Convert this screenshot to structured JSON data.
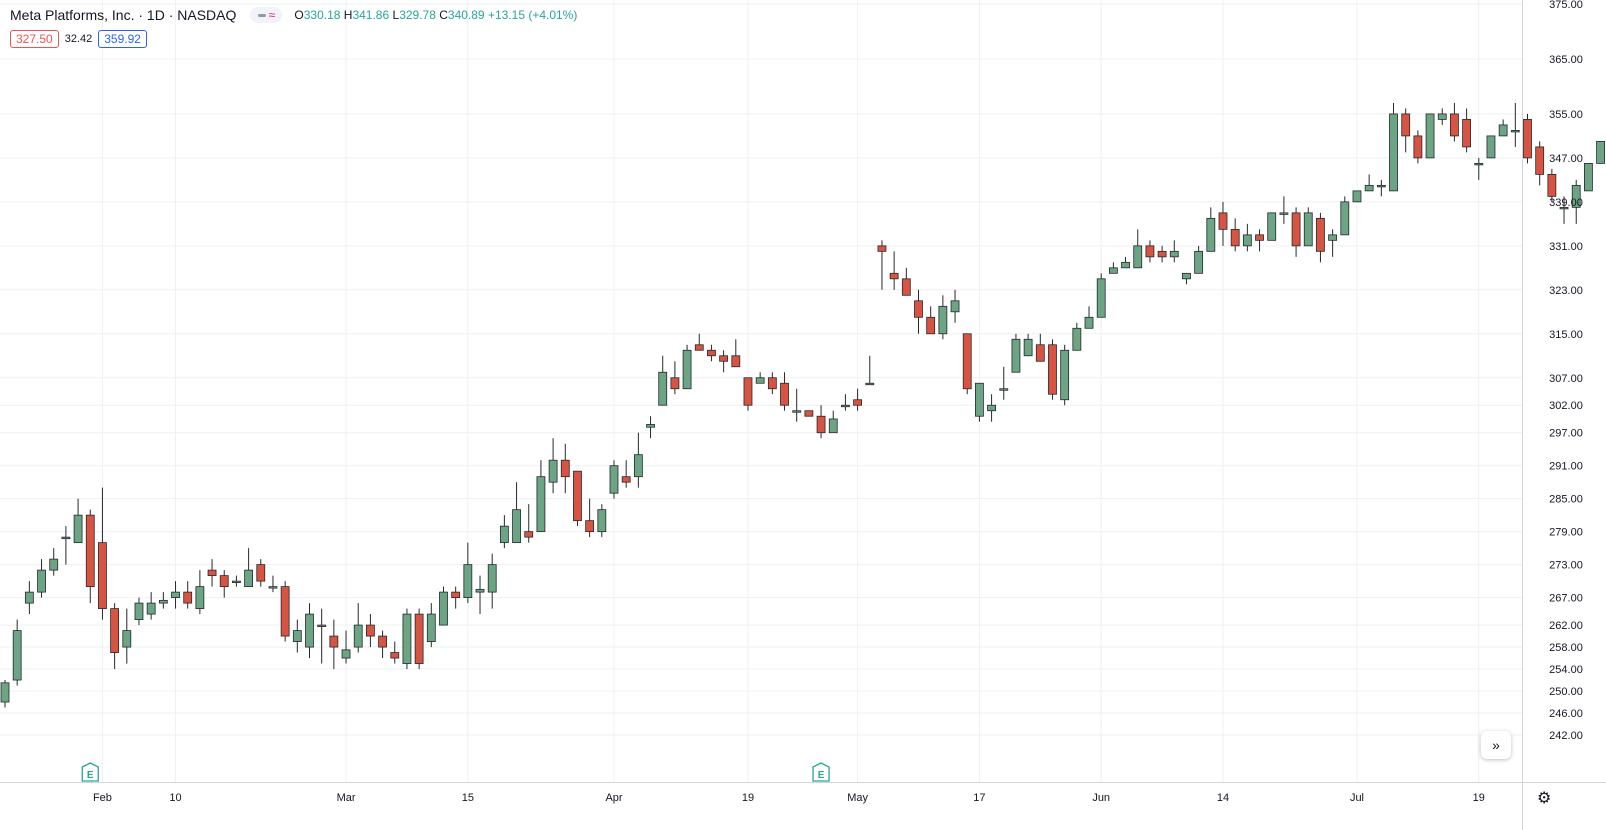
{
  "header": {
    "title": "Meta Platforms, Inc. · 1D · NASDAQ",
    "o_label": "O",
    "o": "330.18",
    "h_label": "H",
    "h": "341.86",
    "l_label": "L",
    "l": "329.78",
    "c_label": "C",
    "c": "340.89",
    "change": "+13.15 (+4.01%)",
    "pill_low": "327.50",
    "pill_mid": "32.42",
    "pill_high": "359.92"
  },
  "colors": {
    "up": "#6ba583",
    "down": "#d75442",
    "grid": "#eef0f3",
    "axis_text": "#131722",
    "earnings": "#26a69a"
  },
  "icons": {
    "scroll_right": "double-chevron-right-icon",
    "settings": "gear-icon",
    "earnings": "earnings-e-icon"
  },
  "earnings_label": "E",
  "chart_data": {
    "type": "candlestick",
    "ylim": [
      238,
      375
    ],
    "y_ticks": [
      "375.00",
      "365.00",
      "355.00",
      "347.00",
      "339.00",
      "331.00",
      "323.00",
      "315.00",
      "307.00",
      "302.00",
      "297.00",
      "291.00",
      "285.00",
      "279.00",
      "273.00",
      "267.00",
      "262.00",
      "258.00",
      "254.00",
      "250.00",
      "246.00",
      "242.00"
    ],
    "x_labels": [
      {
        "label": "Feb",
        "index": 8
      },
      {
        "label": "10",
        "index": 14
      },
      {
        "label": "Mar",
        "index": 28
      },
      {
        "label": "15",
        "index": 38
      },
      {
        "label": "Apr",
        "index": 50
      },
      {
        "label": "19",
        "index": 61
      },
      {
        "label": "May",
        "index": 70
      },
      {
        "label": "17",
        "index": 80
      },
      {
        "label": "Jun",
        "index": 90
      },
      {
        "label": "14",
        "index": 100
      },
      {
        "label": "Jul",
        "index": 111
      },
      {
        "label": "19",
        "index": 121
      }
    ],
    "earnings_at": [
      7,
      67
    ],
    "candles": [
      [
        248,
        251.5,
        247,
        252
      ],
      [
        252,
        261,
        251,
        263
      ],
      [
        266,
        268,
        264,
        270
      ],
      [
        268,
        272,
        267,
        274
      ],
      [
        272,
        274,
        271,
        276
      ],
      [
        278,
        278,
        273,
        280
      ],
      [
        277,
        282,
        277,
        285
      ],
      [
        282,
        269,
        266,
        283
      ],
      [
        277,
        265,
        263,
        287
      ],
      [
        265,
        257,
        254,
        266
      ],
      [
        258,
        261,
        255,
        265
      ],
      [
        263,
        266,
        262,
        267
      ],
      [
        264,
        266,
        263,
        268
      ],
      [
        266,
        266.5,
        265,
        268
      ],
      [
        267,
        268,
        265,
        270
      ],
      [
        268,
        266,
        265,
        270
      ],
      [
        265,
        269,
        264,
        272
      ],
      [
        272,
        271,
        269,
        274
      ],
      [
        271,
        269,
        267,
        272
      ],
      [
        270,
        270,
        269,
        271
      ],
      [
        269,
        272,
        269,
        276
      ],
      [
        273,
        270,
        269,
        274
      ],
      [
        269,
        269,
        268,
        271
      ],
      [
        269,
        260,
        259,
        270
      ],
      [
        259,
        261,
        257,
        263
      ],
      [
        258,
        264,
        256,
        266
      ],
      [
        262,
        262,
        255,
        265
      ],
      [
        260,
        258,
        254,
        263
      ],
      [
        256,
        257.5,
        255,
        261
      ],
      [
        258,
        262,
        257,
        266
      ],
      [
        262,
        260,
        258,
        264
      ],
      [
        260,
        258,
        256,
        261
      ],
      [
        257,
        256,
        255,
        259
      ],
      [
        255,
        264,
        254,
        265
      ],
      [
        264,
        255,
        254,
        265
      ],
      [
        259,
        264,
        258,
        266
      ],
      [
        262,
        268,
        262,
        269
      ],
      [
        268,
        267,
        265,
        269
      ],
      [
        267,
        273,
        266,
        277
      ],
      [
        268,
        268.5,
        264,
        271
      ],
      [
        268,
        273,
        265,
        275
      ],
      [
        277,
        280,
        276,
        282
      ],
      [
        277,
        283,
        277,
        288
      ],
      [
        279,
        278,
        277,
        284
      ],
      [
        279,
        289,
        279,
        292
      ],
      [
        288,
        292,
        286,
        296
      ],
      [
        292,
        289,
        286,
        295
      ],
      [
        290,
        281,
        280,
        290
      ],
      [
        281,
        279,
        278,
        285
      ],
      [
        279,
        283,
        278,
        284
      ],
      [
        286,
        291,
        285,
        292
      ],
      [
        289,
        288,
        287,
        292
      ],
      [
        289,
        293,
        287,
        297
      ],
      [
        298,
        298.5,
        296,
        300
      ],
      [
        302,
        308,
        302,
        311
      ],
      [
        307,
        305,
        304,
        310
      ],
      [
        305,
        312,
        306,
        313
      ],
      [
        313,
        312,
        312,
        315
      ],
      [
        312,
        311,
        310,
        313
      ],
      [
        311,
        310,
        308,
        312
      ],
      [
        311,
        309,
        310,
        314
      ],
      [
        307,
        302,
        301,
        307
      ],
      [
        306,
        307,
        306,
        308
      ],
      [
        307,
        305,
        304,
        308
      ],
      [
        306,
        302,
        301,
        308
      ],
      [
        301,
        301,
        299,
        305
      ],
      [
        301,
        300,
        300,
        301
      ],
      [
        300,
        297,
        296,
        302
      ],
      [
        297,
        299.5,
        297,
        301
      ],
      [
        302,
        302,
        301,
        304
      ],
      [
        303,
        302,
        301,
        305
      ],
      [
        306,
        306,
        306,
        311
      ],
      [
        331,
        330,
        323,
        332
      ],
      [
        326,
        325,
        323,
        330
      ],
      [
        325,
        322,
        322,
        327
      ],
      [
        321,
        318,
        315,
        323
      ],
      [
        318,
        315,
        316,
        320
      ],
      [
        315,
        320,
        314,
        322
      ],
      [
        319,
        321,
        317,
        323
      ],
      [
        315,
        305,
        304,
        315
      ],
      [
        300,
        306,
        299,
        306
      ],
      [
        301,
        302,
        299,
        304
      ],
      [
        305,
        305,
        303,
        309
      ],
      [
        308,
        314,
        308,
        315
      ],
      [
        311,
        314,
        311,
        315
      ],
      [
        313,
        310,
        310,
        315
      ],
      [
        313,
        304,
        303,
        314
      ],
      [
        303,
        312,
        302,
        313
      ],
      [
        312,
        316,
        312,
        317
      ],
      [
        316,
        318,
        316,
        320
      ],
      [
        318,
        325,
        318,
        326
      ],
      [
        326,
        327,
        326,
        328
      ],
      [
        327,
        328,
        327,
        329
      ],
      [
        327,
        331,
        327,
        334
      ],
      [
        331,
        329,
        328,
        332
      ],
      [
        330,
        329,
        328,
        331
      ],
      [
        329,
        330,
        328,
        332
      ],
      [
        325,
        326,
        324,
        326
      ],
      [
        326,
        330,
        326,
        331
      ],
      [
        330,
        336,
        330,
        338
      ],
      [
        337,
        334,
        331,
        339
      ],
      [
        334,
        331,
        330,
        336
      ],
      [
        331,
        333,
        330,
        335
      ],
      [
        333,
        332,
        330,
        334
      ],
      [
        332,
        337,
        332,
        337
      ],
      [
        337,
        337,
        335,
        340
      ],
      [
        337,
        331,
        329,
        338
      ],
      [
        331,
        337,
        331,
        338
      ],
      [
        336,
        330,
        328,
        337
      ],
      [
        332,
        333,
        329,
        334
      ],
      [
        333,
        339,
        333,
        340
      ],
      [
        339,
        341,
        339,
        341
      ],
      [
        341,
        342,
        341,
        344
      ],
      [
        342,
        342,
        340,
        343
      ],
      [
        341,
        355,
        341,
        357
      ],
      [
        355,
        351,
        348,
        356
      ],
      [
        351,
        347,
        346,
        352
      ],
      [
        347,
        355,
        347,
        355
      ],
      [
        354,
        355,
        353,
        356
      ],
      [
        355,
        351,
        350,
        357
      ],
      [
        354,
        349,
        348,
        356
      ],
      [
        346,
        346,
        343,
        347
      ],
      [
        347,
        351,
        347,
        351
      ],
      [
        351,
        353,
        351,
        354
      ],
      [
        352,
        352,
        349,
        357
      ],
      [
        354,
        347,
        346,
        355
      ],
      [
        349,
        344,
        342,
        350
      ],
      [
        344,
        340,
        339,
        345
      ],
      [
        338,
        338,
        335,
        340
      ],
      [
        338,
        342,
        335,
        343
      ],
      [
        341,
        346,
        341,
        346
      ],
      [
        346,
        350,
        346,
        350
      ]
    ]
  }
}
